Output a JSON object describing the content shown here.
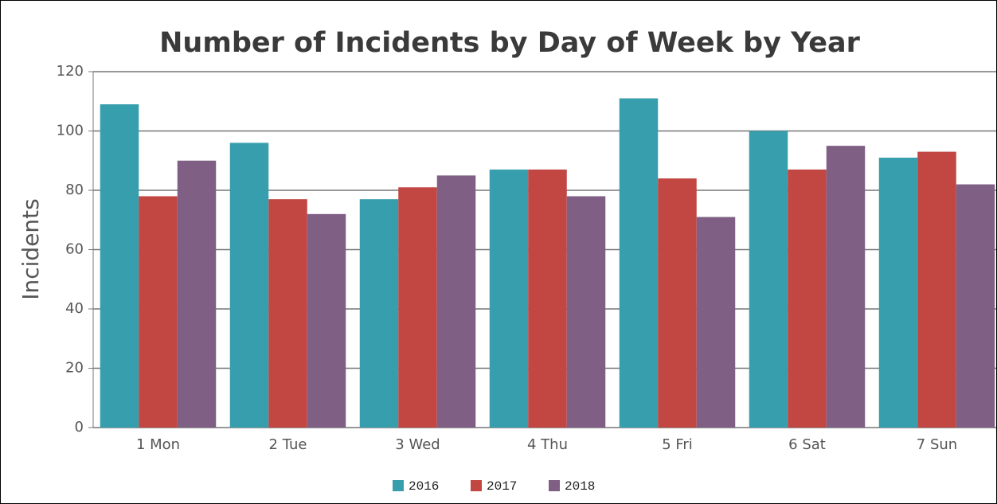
{
  "chart_data": {
    "type": "bar",
    "title": "Number of Incidents by Day of Week by Year",
    "y_label": "Incidents",
    "categories": [
      "1 Mon",
      "2 Tue",
      "3 Wed",
      "4 Thu",
      "5 Fri",
      "6 Sat",
      "7 Sun"
    ],
    "series": [
      {
        "name": "2016",
        "color": "#369ead",
        "values": [
          109,
          96,
          77,
          87,
          111,
          100,
          91
        ]
      },
      {
        "name": "2017",
        "color": "#c24642",
        "values": [
          78,
          77,
          81,
          87,
          84,
          87,
          93
        ]
      },
      {
        "name": "2018",
        "color": "#7f6084",
        "values": [
          90,
          72,
          85,
          78,
          71,
          95,
          82
        ]
      }
    ],
    "ylim": [
      0,
      120
    ],
    "yticks": [
      0,
      20,
      40,
      60,
      80,
      100,
      120
    ],
    "grid": true,
    "legend": "bottom"
  }
}
